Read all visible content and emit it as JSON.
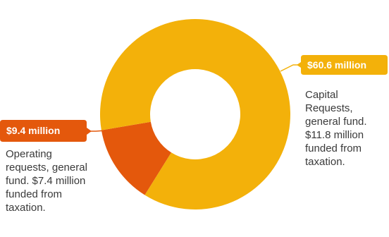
{
  "chart_data": {
    "type": "pie",
    "donut": true,
    "total": 70.0,
    "slices": [
      {
        "value_label": "$60.6 million",
        "value": 60.6,
        "description": "Capital\nRequests,\ngeneral fund.\n$11.8 million\nfunded from\ntaxation.",
        "color": "#f3b10a"
      },
      {
        "value_label": "$9.4 million",
        "value": 9.4,
        "description": "Operating\nrequests, general\nfund. $7.4 million\nfunded from\ntaxation.",
        "color": "#e4580c"
      }
    ]
  },
  "colors": {
    "callout_text": "#ffffff",
    "description_text": "#3a3a3a"
  }
}
